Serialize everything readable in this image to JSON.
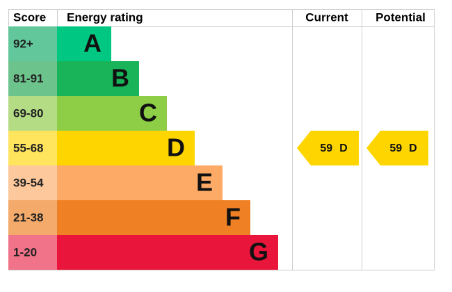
{
  "header": {
    "score": "Score",
    "rating": "Energy rating",
    "current": "Current",
    "potential": "Potential"
  },
  "bands": [
    {
      "range": "92+",
      "letter": "A",
      "color": "#00c781",
      "score_color": "#63c79c"
    },
    {
      "range": "81-91",
      "letter": "B",
      "color": "#19b459",
      "score_color": "#6cc48c"
    },
    {
      "range": "69-80",
      "letter": "C",
      "color": "#8dce46",
      "score_color": "#b4dc85"
    },
    {
      "range": "55-68",
      "letter": "D",
      "color": "#ffd500",
      "score_color": "#ffe45e"
    },
    {
      "range": "39-54",
      "letter": "E",
      "color": "#fcaa65",
      "score_color": "#fdc89b"
    },
    {
      "range": "21-38",
      "letter": "F",
      "color": "#ef8023",
      "score_color": "#f3aa6b"
    },
    {
      "range": "1-20",
      "letter": "G",
      "color": "#e9153b",
      "score_color": "#f07389"
    }
  ],
  "current": {
    "score": 59,
    "band": "D"
  },
  "potential": {
    "score": 59,
    "band": "D"
  }
}
